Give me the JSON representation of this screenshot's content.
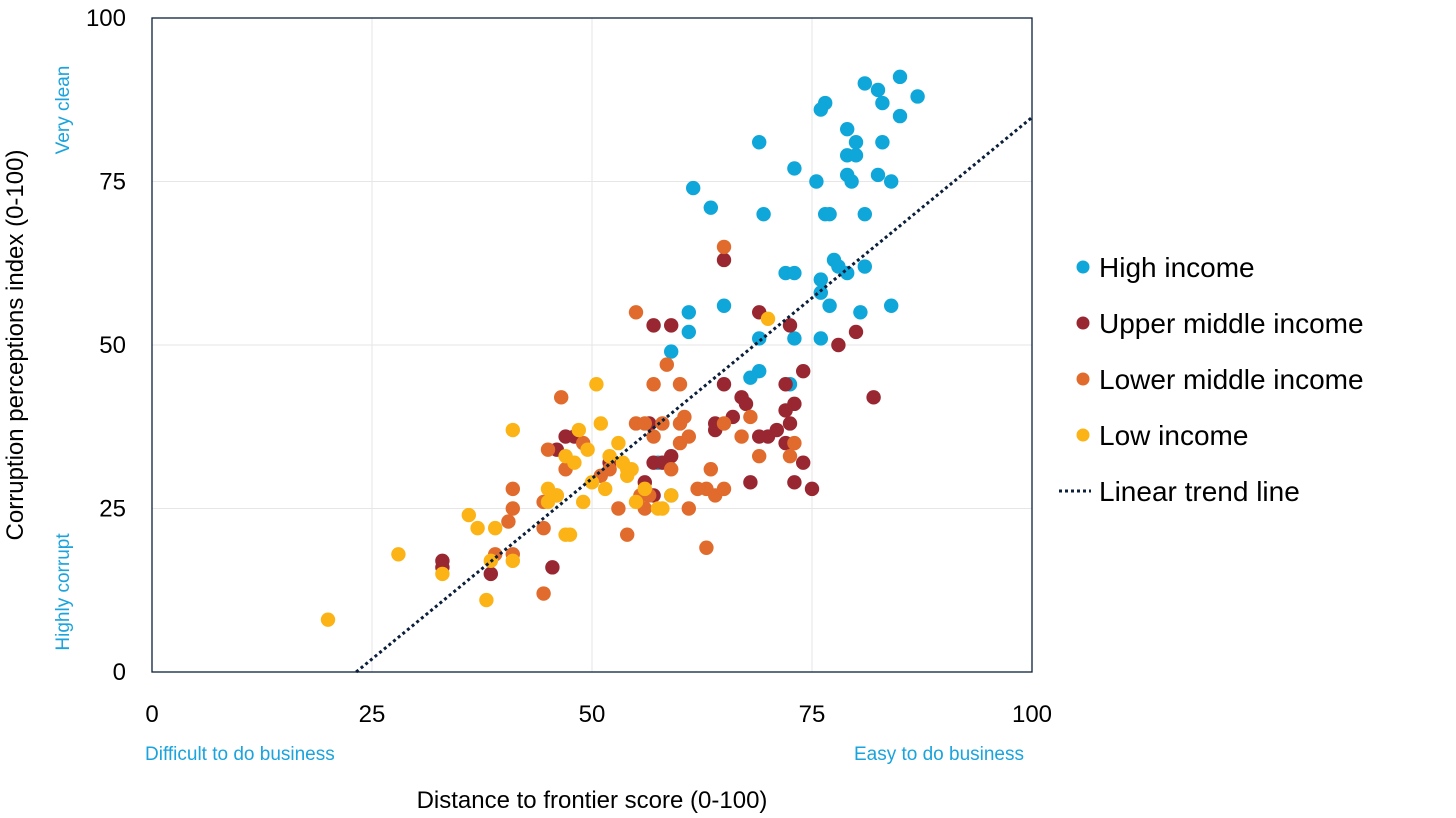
{
  "chart_data": {
    "type": "scatter",
    "xlabel": "Distance to frontier score (0-100)",
    "ylabel": "Corruption perceptions index (0-100)",
    "xlim": [
      0,
      100
    ],
    "ylim": [
      0,
      100
    ],
    "x_ticks": [
      "0",
      "25",
      "50",
      "75",
      "100"
    ],
    "y_ticks": [
      "0",
      "25",
      "50",
      "75",
      "100"
    ],
    "x_annotations": {
      "low": "Difficult to do business",
      "high": "Easy to do business"
    },
    "y_annotations": {
      "low": "Highly corrupt",
      "high": "Very clean"
    },
    "grid": true,
    "legend_position": "right",
    "colors": {
      "High income": "#0fa6d9",
      "Upper middle income": "#992731",
      "Lower middle income": "#e06b2c",
      "Low income": "#fcb316",
      "annotation": "#1aa3dc",
      "trend": "#0b1f3a",
      "axis": "#0b1f3a"
    },
    "trend_line": {
      "name": "Linear trend line",
      "x": [
        23.2,
        100
      ],
      "y": [
        0,
        84.8
      ]
    },
    "series": [
      {
        "name": "High income",
        "points": [
          [
            85,
            91
          ],
          [
            81,
            90
          ],
          [
            82.5,
            89
          ],
          [
            87,
            88
          ],
          [
            76.5,
            87
          ],
          [
            83,
            87
          ],
          [
            76,
            86
          ],
          [
            85,
            85
          ],
          [
            79,
            83
          ],
          [
            69,
            81
          ],
          [
            80,
            81
          ],
          [
            83,
            81
          ],
          [
            79,
            79
          ],
          [
            80,
            79
          ],
          [
            79,
            76
          ],
          [
            82.5,
            76
          ],
          [
            79.5,
            75
          ],
          [
            84,
            75
          ],
          [
            75.5,
            75
          ],
          [
            73,
            77
          ],
          [
            61.5,
            74
          ],
          [
            63.5,
            71
          ],
          [
            69.5,
            70
          ],
          [
            76.5,
            70
          ],
          [
            77,
            70
          ],
          [
            81,
            70
          ],
          [
            77.5,
            63
          ],
          [
            78,
            62
          ],
          [
            81,
            62
          ],
          [
            72,
            61
          ],
          [
            73,
            61
          ],
          [
            79,
            61
          ],
          [
            76,
            60
          ],
          [
            76,
            58
          ],
          [
            61,
            55
          ],
          [
            65,
            56
          ],
          [
            77,
            56
          ],
          [
            84,
            56
          ],
          [
            80.5,
            55
          ],
          [
            61,
            52
          ],
          [
            69,
            51
          ],
          [
            73,
            51
          ],
          [
            76,
            51
          ],
          [
            59,
            49
          ],
          [
            69,
            46
          ],
          [
            68,
            45
          ],
          [
            72.5,
            44
          ],
          [
            57.5,
            32
          ],
          [
            59,
            27
          ]
        ]
      },
      {
        "name": "Upper middle income",
        "points": [
          [
            65,
            63
          ],
          [
            69,
            55
          ],
          [
            57,
            53
          ],
          [
            59,
            53
          ],
          [
            72.5,
            53
          ],
          [
            80,
            52
          ],
          [
            78,
            50
          ],
          [
            65,
            44
          ],
          [
            72,
            44
          ],
          [
            74,
            46
          ],
          [
            67,
            42
          ],
          [
            67.5,
            41
          ],
          [
            73,
            41
          ],
          [
            72,
            40
          ],
          [
            70,
            36
          ],
          [
            71,
            37
          ],
          [
            64,
            38
          ],
          [
            64,
            37
          ],
          [
            66,
            39
          ],
          [
            72.5,
            38
          ],
          [
            69,
            36
          ],
          [
            72,
            35
          ],
          [
            74,
            32
          ],
          [
            73,
            29
          ],
          [
            75,
            28
          ],
          [
            82,
            42
          ],
          [
            56.5,
            38
          ],
          [
            57,
            32
          ],
          [
            59,
            33
          ],
          [
            56,
            29
          ],
          [
            57,
            27
          ],
          [
            58,
            32
          ],
          [
            68,
            29
          ],
          [
            47,
            36
          ],
          [
            48,
            36
          ],
          [
            46,
            34
          ],
          [
            52,
            32
          ],
          [
            33,
            17
          ],
          [
            33,
            16
          ],
          [
            38.5,
            15
          ],
          [
            45.5,
            16
          ]
        ]
      },
      {
        "name": "Lower middle income",
        "points": [
          [
            65,
            65
          ],
          [
            55,
            55
          ],
          [
            58.5,
            47
          ],
          [
            57,
            44
          ],
          [
            60,
            44
          ],
          [
            55,
            38
          ],
          [
            56,
            38
          ],
          [
            57,
            36
          ],
          [
            58,
            38
          ],
          [
            60,
            38
          ],
          [
            60.5,
            39
          ],
          [
            61,
            36
          ],
          [
            60,
            35
          ],
          [
            65,
            38
          ],
          [
            67,
            36
          ],
          [
            68,
            39
          ],
          [
            69,
            33
          ],
          [
            73,
            35
          ],
          [
            72.5,
            33
          ],
          [
            63,
            28
          ],
          [
            64,
            27
          ],
          [
            65,
            28
          ],
          [
            63.5,
            31
          ],
          [
            62,
            28
          ],
          [
            61,
            25
          ],
          [
            59,
            31
          ],
          [
            56.5,
            27
          ],
          [
            56,
            25
          ],
          [
            55.5,
            27
          ],
          [
            53,
            25
          ],
          [
            54,
            21
          ],
          [
            63,
            19
          ],
          [
            52,
            31
          ],
          [
            51,
            30
          ],
          [
            49,
            35
          ],
          [
            47,
            31
          ],
          [
            46.5,
            42
          ],
          [
            45,
            34
          ],
          [
            44.5,
            26
          ],
          [
            46,
            27
          ],
          [
            44.5,
            22
          ],
          [
            41,
            28
          ],
          [
            41,
            25
          ],
          [
            40.5,
            23
          ],
          [
            39,
            18
          ],
          [
            41,
            18
          ],
          [
            44.5,
            12
          ]
        ]
      },
      {
        "name": "Low income",
        "points": [
          [
            20,
            8
          ],
          [
            28,
            18
          ],
          [
            33,
            15
          ],
          [
            36,
            24
          ],
          [
            37,
            22
          ],
          [
            38,
            11
          ],
          [
            38.5,
            17
          ],
          [
            39,
            22
          ],
          [
            41,
            37
          ],
          [
            41,
            17
          ],
          [
            45,
            28
          ],
          [
            45,
            26
          ],
          [
            46,
            27
          ],
          [
            47,
            21
          ],
          [
            47.5,
            21
          ],
          [
            47,
            33
          ],
          [
            48,
            32
          ],
          [
            48.5,
            37
          ],
          [
            49,
            26
          ],
          [
            49.5,
            34
          ],
          [
            50,
            29
          ],
          [
            50.5,
            44
          ],
          [
            51,
            38
          ],
          [
            51.5,
            28
          ],
          [
            52,
            33
          ],
          [
            53,
            35
          ],
          [
            53.5,
            32
          ],
          [
            54,
            31
          ],
          [
            54.5,
            31
          ],
          [
            54,
            30
          ],
          [
            55,
            26
          ],
          [
            56,
            28
          ],
          [
            57.5,
            25
          ],
          [
            58,
            25
          ],
          [
            59,
            27
          ],
          [
            70,
            54
          ]
        ]
      }
    ]
  }
}
